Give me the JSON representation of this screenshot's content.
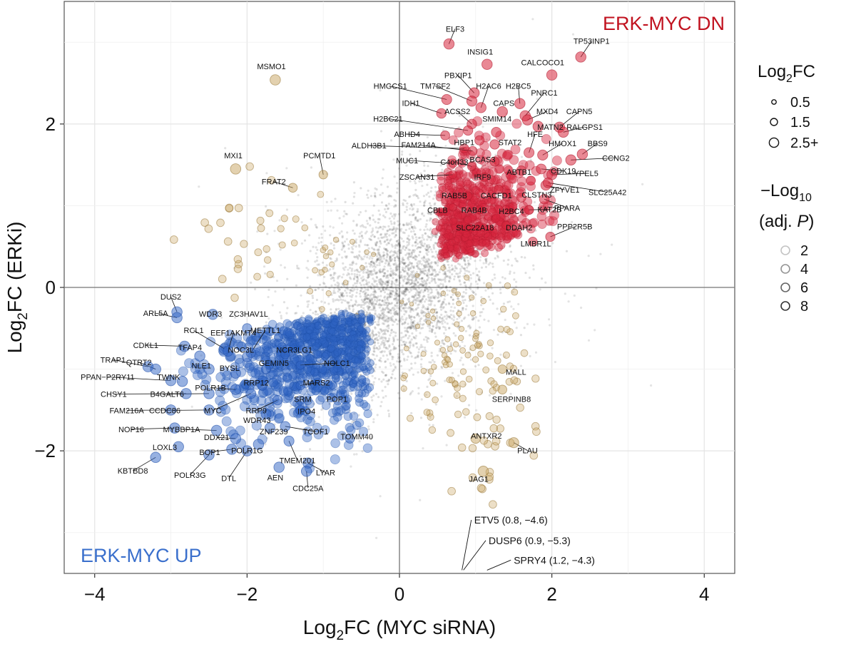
{
  "chart_data": {
    "type": "scatter",
    "title": "",
    "xlabel": "Log2FC (MYC siRNA)",
    "xlabel_main": "Log",
    "xlabel_sub": "2",
    "xlabel_rest": "FC (MYC siRNA)",
    "ylabel": "Log2FC (ERKi)",
    "ylabel_main": "Log",
    "ylabel_sub": "2",
    "ylabel_rest": "FC (ERKi)",
    "xlim": [
      -4.4,
      4.4
    ],
    "ylim": [
      -3.5,
      3.5
    ],
    "x_ticks": [
      -4,
      -2,
      0,
      2,
      4
    ],
    "y_ticks": [
      -2,
      0,
      2
    ],
    "x_tick_labels": [
      "−4",
      "−2",
      "0",
      "2",
      "4"
    ],
    "y_tick_labels": [
      "−2",
      "0",
      "2"
    ],
    "grid": true,
    "quadrant_labels": {
      "top_right": "ERK-MYC DN",
      "bottom_left": "ERK-MYC UP"
    },
    "colors": {
      "dn": "#d7263d",
      "up": "#2f63c4",
      "other": "#c8a45f",
      "background": "#555555",
      "dn_text": "#c1121f",
      "up_text": "#3a6fcc"
    },
    "legend": {
      "size_title_main": "Log",
      "size_title_sub": "2",
      "size_title_rest": "FC",
      "size_items": [
        {
          "label": "0.5",
          "value": 0.5
        },
        {
          "label": "1.5",
          "value": 1.5
        },
        {
          "label": "2.5+",
          "value": 2.5
        }
      ],
      "alpha_title_line1_main": "−Log",
      "alpha_title_line1_sub": "10",
      "alpha_title_line2_pre": "(adj. ",
      "alpha_title_line2_italic": "P",
      "alpha_title_line2_post": ")",
      "alpha_items": [
        {
          "label": "2",
          "value": 2
        },
        {
          "label": "4",
          "value": 4
        },
        {
          "label": "6",
          "value": 6
        },
        {
          "label": "8",
          "value": 8
        }
      ]
    },
    "offscale_annotations": [
      {
        "label": "ETV5 (0.8, −4.6)",
        "x": 0.8,
        "y": -4.6
      },
      {
        "label": "DUSP6 (0.9, −5.3)",
        "x": 0.9,
        "y": -5.3
      },
      {
        "label": "SPRY4 (1.2, −4.3)",
        "x": 1.2,
        "y": -4.3
      }
    ],
    "dn_genes": [
      {
        "name": "ELF3",
        "x": 0.65,
        "y": 2.98,
        "lx": 0.73,
        "ly": 3.13
      },
      {
        "name": "INSIG1",
        "x": 1.15,
        "y": 2.73,
        "lx": 1.06,
        "ly": 2.85
      },
      {
        "name": "TP53INP1",
        "x": 2.38,
        "y": 2.82,
        "lx": 2.52,
        "ly": 2.98
      },
      {
        "name": "CALCOCO1",
        "x": 2.0,
        "y": 2.6,
        "lx": 1.88,
        "ly": 2.72
      },
      {
        "name": "PBXIP1",
        "x": 0.98,
        "y": 2.38,
        "lx": 0.77,
        "ly": 2.56
      },
      {
        "name": "HMGCS1",
        "x": 0.62,
        "y": 2.3,
        "lx": -0.12,
        "ly": 2.43
      },
      {
        "name": "TM7SF2",
        "x": 0.95,
        "y": 2.28,
        "lx": 0.47,
        "ly": 2.43
      },
      {
        "name": "H2AC6",
        "x": 1.07,
        "y": 2.2,
        "lx": 1.17,
        "ly": 2.43
      },
      {
        "name": "H2BC5",
        "x": 1.58,
        "y": 2.25,
        "lx": 1.56,
        "ly": 2.43
      },
      {
        "name": "PNRC1",
        "x": 1.65,
        "y": 2.1,
        "lx": 1.9,
        "ly": 2.35
      },
      {
        "name": "IDH1",
        "x": 0.55,
        "y": 2.13,
        "lx": 0.15,
        "ly": 2.22
      },
      {
        "name": "ACSS2",
        "x": 0.95,
        "y": 2.0,
        "lx": 0.76,
        "ly": 2.12
      },
      {
        "name": "CAPS",
        "x": 1.35,
        "y": 2.15,
        "lx": 1.37,
        "ly": 2.22
      },
      {
        "name": "MXD4",
        "x": 1.68,
        "y": 2.05,
        "lx": 1.94,
        "ly": 2.12
      },
      {
        "name": "CAPN5",
        "x": 2.1,
        "y": 1.96,
        "lx": 2.36,
        "ly": 2.12
      },
      {
        "name": "H2BC21",
        "x": 0.9,
        "y": 1.92,
        "lx": -0.15,
        "ly": 2.03
      },
      {
        "name": "SMIM14",
        "x": 1.27,
        "y": 1.9,
        "lx": 1.28,
        "ly": 2.03
      },
      {
        "name": "MATN2",
        "x": 1.82,
        "y": 1.97,
        "lx": 1.98,
        "ly": 1.93
      },
      {
        "name": "RALGPS1",
        "x": 2.15,
        "y": 1.9,
        "lx": 2.43,
        "ly": 1.93
      },
      {
        "name": "ABHD4",
        "x": 0.6,
        "y": 1.86,
        "lx": 0.1,
        "ly": 1.84
      },
      {
        "name": "HBP1",
        "x": 1.05,
        "y": 1.8,
        "lx": 0.85,
        "ly": 1.74
      },
      {
        "name": "STAT2",
        "x": 1.25,
        "y": 1.75,
        "lx": 1.45,
        "ly": 1.74
      },
      {
        "name": "ALDH3B1",
        "x": 0.85,
        "y": 1.7,
        "lx": -0.4,
        "ly": 1.7
      },
      {
        "name": "FAM214A",
        "x": 0.96,
        "y": 1.67,
        "lx": 0.25,
        "ly": 1.71
      },
      {
        "name": "HFE",
        "x": 1.7,
        "y": 1.65,
        "lx": 1.78,
        "ly": 1.84
      },
      {
        "name": "HMOX1",
        "x": 1.88,
        "y": 1.62,
        "lx": 2.14,
        "ly": 1.73
      },
      {
        "name": "BBS9",
        "x": 2.4,
        "y": 1.63,
        "lx": 2.6,
        "ly": 1.73
      },
      {
        "name": "CCNG2",
        "x": 2.25,
        "y": 1.56,
        "lx": 2.84,
        "ly": 1.55
      },
      {
        "name": "MUC1",
        "x": 0.7,
        "y": 1.52,
        "lx": 0.1,
        "ly": 1.52
      },
      {
        "name": "C4orf33",
        "x": 0.95,
        "y": 1.48,
        "lx": 0.72,
        "ly": 1.5
      },
      {
        "name": "BCAS3",
        "x": 1.25,
        "y": 1.54,
        "lx": 1.09,
        "ly": 1.53
      },
      {
        "name": "ABTB1",
        "x": 1.6,
        "y": 1.43,
        "lx": 1.57,
        "ly": 1.38
      },
      {
        "name": "CDK19",
        "x": 1.86,
        "y": 1.45,
        "lx": 2.15,
        "ly": 1.39
      },
      {
        "name": "YPEL5",
        "x": 2.0,
        "y": 1.38,
        "lx": 2.45,
        "ly": 1.36
      },
      {
        "name": "ZSCAN31",
        "x": 0.7,
        "y": 1.38,
        "lx": 0.23,
        "ly": 1.32
      },
      {
        "name": "IRF9",
        "x": 1.12,
        "y": 1.35,
        "lx": 1.09,
        "ly": 1.32
      },
      {
        "name": "ZFYVE1",
        "x": 1.92,
        "y": 1.25,
        "lx": 2.17,
        "ly": 1.16
      },
      {
        "name": "SLC25A42",
        "x": 1.95,
        "y": 1.28,
        "lx": 2.73,
        "ly": 1.13
      },
      {
        "name": "RAB5B",
        "x": 0.9,
        "y": 1.12,
        "lx": 0.72,
        "ly": 1.09
      },
      {
        "name": "CACFD1",
        "x": 1.3,
        "y": 1.2,
        "lx": 1.27,
        "ly": 1.09
      },
      {
        "name": "CLSTN3",
        "x": 1.6,
        "y": 1.1,
        "lx": 1.8,
        "ly": 1.1
      },
      {
        "name": "CBLB",
        "x": 0.7,
        "y": 0.98,
        "lx": 0.5,
        "ly": 0.91
      },
      {
        "name": "RAB4B",
        "x": 1.05,
        "y": 0.95,
        "lx": 0.98,
        "ly": 0.91
      },
      {
        "name": "H2BC4",
        "x": 1.4,
        "y": 0.95,
        "lx": 1.47,
        "ly": 0.9
      },
      {
        "name": "KAT2B",
        "x": 1.7,
        "y": 0.95,
        "lx": 1.97,
        "ly": 0.92
      },
      {
        "name": "PPARA",
        "x": 1.9,
        "y": 1.08,
        "lx": 2.2,
        "ly": 0.94
      },
      {
        "name": "SLC22A18",
        "x": 0.9,
        "y": 0.73,
        "lx": 0.99,
        "ly": 0.7
      },
      {
        "name": "DDAH2",
        "x": 1.4,
        "y": 0.76,
        "lx": 1.57,
        "ly": 0.7
      },
      {
        "name": "PPP2R5B",
        "x": 1.98,
        "y": 0.62,
        "lx": 2.3,
        "ly": 0.71
      },
      {
        "name": "LMBR1L",
        "x": 1.75,
        "y": 0.56,
        "lx": 1.79,
        "ly": 0.5
      }
    ],
    "up_genes": [
      {
        "name": "DUS2",
        "x": -2.92,
        "y": -0.3,
        "lx": -3.0,
        "ly": -0.15
      },
      {
        "name": "ARL5A",
        "x": -2.92,
        "y": -0.37,
        "lx": -3.2,
        "ly": -0.35
      },
      {
        "name": "WDR3",
        "x": -2.45,
        "y": -0.33,
        "lx": -2.48,
        "ly": -0.36
      },
      {
        "name": "ZC3HAV1L",
        "x": -2.0,
        "y": -0.5,
        "lx": -1.98,
        "ly": -0.36
      },
      {
        "name": "RCL1",
        "x": -2.3,
        "y": -0.75,
        "lx": -2.7,
        "ly": -0.56
      },
      {
        "name": "EEF1AKMT4",
        "x": -2.25,
        "y": -0.78,
        "lx": -2.18,
        "ly": -0.59
      },
      {
        "name": "METTL1",
        "x": -1.95,
        "y": -0.8,
        "lx": -1.76,
        "ly": -0.56
      },
      {
        "name": "CDKL1",
        "x": -2.82,
        "y": -0.72,
        "lx": -3.33,
        "ly": -0.74
      },
      {
        "name": "TFAP4",
        "x": -2.62,
        "y": -0.84,
        "lx": -2.75,
        "ly": -0.77
      },
      {
        "name": "NOC3L",
        "x": -2.0,
        "y": -0.85,
        "lx": -2.08,
        "ly": -0.8
      },
      {
        "name": "NCR3LG1",
        "x": -1.5,
        "y": -0.82,
        "lx": -1.38,
        "ly": -0.8
      },
      {
        "name": "TRAP1",
        "x": -3.3,
        "y": -0.97,
        "lx": -3.76,
        "ly": -0.92
      },
      {
        "name": "QTRT2",
        "x": -3.2,
        "y": -1.0,
        "lx": -3.42,
        "ly": -0.95
      },
      {
        "name": "NLE1",
        "x": -2.5,
        "y": -1.0,
        "lx": -2.6,
        "ly": -0.99
      },
      {
        "name": "BYSL",
        "x": -2.15,
        "y": -1.05,
        "lx": -2.23,
        "ly": -1.02
      },
      {
        "name": "GEMIN5",
        "x": -1.75,
        "y": -1.0,
        "lx": -1.65,
        "ly": -0.96
      },
      {
        "name": "NOLC1",
        "x": -1.3,
        "y": -0.95,
        "lx": -0.82,
        "ly": -0.96
      },
      {
        "name": "PPAN−P2RY11",
        "x": -3.0,
        "y": -1.14,
        "lx": -3.83,
        "ly": -1.13
      },
      {
        "name": "TWNK",
        "x": -2.85,
        "y": -1.15,
        "lx": -3.03,
        "ly": -1.13
      },
      {
        "name": "POLR1B",
        "x": -2.15,
        "y": -1.25,
        "lx": -2.48,
        "ly": -1.26
      },
      {
        "name": "RRP12",
        "x": -1.8,
        "y": -1.2,
        "lx": -1.88,
        "ly": -1.2
      },
      {
        "name": "MARS2",
        "x": -1.3,
        "y": -1.2,
        "lx": -1.09,
        "ly": -1.2
      },
      {
        "name": "CHSY1",
        "x": -2.8,
        "y": -1.3,
        "lx": -3.75,
        "ly": -1.34
      },
      {
        "name": "B4GALT6",
        "x": -2.5,
        "y": -1.3,
        "lx": -3.05,
        "ly": -1.34
      },
      {
        "name": "SRM",
        "x": -1.3,
        "y": -1.38,
        "lx": -1.27,
        "ly": -1.4
      },
      {
        "name": "POP1",
        "x": -0.9,
        "y": -1.35,
        "lx": -0.82,
        "ly": -1.4
      },
      {
        "name": "FAM216A",
        "x": -3.0,
        "y": -1.5,
        "lx": -3.58,
        "ly": -1.54
      },
      {
        "name": "CCDC86",
        "x": -2.5,
        "y": -1.5,
        "lx": -3.08,
        "ly": -1.54
      },
      {
        "name": "MYC",
        "x": -1.95,
        "y": -1.3,
        "lx": -2.45,
        "ly": -1.54
      },
      {
        "name": "RRP9",
        "x": -1.6,
        "y": -1.38,
        "lx": -1.88,
        "ly": -1.54
      },
      {
        "name": "IPO4",
        "x": -1.3,
        "y": -1.5,
        "lx": -1.22,
        "ly": -1.55
      },
      {
        "name": "WDR43",
        "x": -1.75,
        "y": -1.55,
        "lx": -1.87,
        "ly": -1.66
      },
      {
        "name": "NOP16",
        "x": -2.95,
        "y": -1.72,
        "lx": -3.52,
        "ly": -1.77
      },
      {
        "name": "MYBBP1A",
        "x": -2.4,
        "y": -1.75,
        "lx": -2.86,
        "ly": -1.77
      },
      {
        "name": "ZNF239",
        "x": -1.7,
        "y": -1.72,
        "lx": -1.65,
        "ly": -1.8
      },
      {
        "name": "TCOF1",
        "x": -1.5,
        "y": -1.7,
        "lx": -1.1,
        "ly": -1.8
      },
      {
        "name": "DDX21",
        "x": -2.15,
        "y": -1.85,
        "lx": -2.4,
        "ly": -1.87
      },
      {
        "name": "TOMM40",
        "x": -0.65,
        "y": -1.85,
        "lx": -0.56,
        "ly": -1.86
      },
      {
        "name": "LOXL3",
        "x": -2.9,
        "y": -1.95,
        "lx": -3.08,
        "ly": -1.99
      },
      {
        "name": "BOP1",
        "x": -2.2,
        "y": -1.98,
        "lx": -2.49,
        "ly": -2.05
      },
      {
        "name": "POLR1G",
        "x": -1.85,
        "y": -1.92,
        "lx": -2.0,
        "ly": -2.03
      },
      {
        "name": "TMEM201",
        "x": -1.45,
        "y": -1.88,
        "lx": -1.34,
        "ly": -2.15
      },
      {
        "name": "KBTBD8",
        "x": -3.2,
        "y": -2.08,
        "lx": -3.5,
        "ly": -2.28
      },
      {
        "name": "POLR3G",
        "x": -2.5,
        "y": -2.05,
        "lx": -2.75,
        "ly": -2.33
      },
      {
        "name": "DTL",
        "x": -2.0,
        "y": -2.0,
        "lx": -2.24,
        "ly": -2.37
      },
      {
        "name": "AEN",
        "x": -1.58,
        "y": -2.2,
        "lx": -1.63,
        "ly": -2.36
      },
      {
        "name": "LYAR",
        "x": -1.2,
        "y": -2.15,
        "lx": -0.97,
        "ly": -2.3
      },
      {
        "name": "CDC25A",
        "x": -1.22,
        "y": -2.25,
        "lx": -1.2,
        "ly": -2.49
      }
    ],
    "other_genes": [
      {
        "name": "MSMO1",
        "x": -1.63,
        "y": 2.54,
        "lx": -1.68,
        "ly": 2.67
      },
      {
        "name": "MXI1",
        "x": -2.15,
        "y": 1.45,
        "lx": -2.18,
        "ly": 1.58
      },
      {
        "name": "PCMTD1",
        "x": -1.0,
        "y": 1.38,
        "lx": -1.05,
        "ly": 1.58
      },
      {
        "name": "FRAT2",
        "x": -1.4,
        "y": 1.22,
        "lx": -1.65,
        "ly": 1.26
      },
      {
        "name": "MALL",
        "x": 1.35,
        "y": -1.0,
        "lx": 1.53,
        "ly": -1.07
      },
      {
        "name": "SERPINB8",
        "x": 1.35,
        "y": -1.25,
        "lx": 1.47,
        "ly": -1.4
      },
      {
        "name": "ANTXR2",
        "x": 1.0,
        "y": -1.85,
        "lx": 1.14,
        "ly": -1.85
      },
      {
        "name": "PLAU",
        "x": 1.5,
        "y": -1.9,
        "lx": 1.68,
        "ly": -2.03
      },
      {
        "name": "JAG1",
        "x": 1.1,
        "y": -2.25,
        "lx": 1.04,
        "ly": -2.38
      }
    ]
  }
}
